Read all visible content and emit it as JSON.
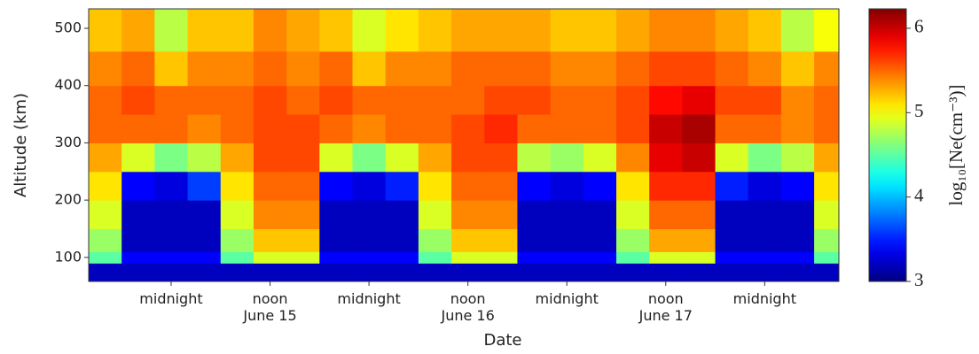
{
  "chart_data": {
    "type": "heatmap",
    "xlabel": "Date",
    "ylabel": "Altitude (km)",
    "colorbar_label": "log₁₀[Ne(cm⁻³)]",
    "colormap": "jet",
    "xlim": [
      -10,
      81
    ],
    "ylim": [
      58,
      534
    ],
    "clim": [
      3,
      6.23
    ],
    "xticks": [
      {
        "value": 0,
        "label": "midnight"
      },
      {
        "value": 12,
        "label": "noon\nJune 15"
      },
      {
        "value": 24,
        "label": "midnight"
      },
      {
        "value": 36,
        "label": "noon\nJune 16"
      },
      {
        "value": 48,
        "label": "midnight"
      },
      {
        "value": 60,
        "label": "noon\nJune 17"
      },
      {
        "value": 72,
        "label": "midnight"
      }
    ],
    "yticks": [
      100,
      200,
      300,
      400,
      500
    ],
    "cticks": [
      3,
      4,
      5,
      6
    ],
    "x_bins": [
      -10,
      -6,
      -2,
      2,
      6,
      10,
      14,
      18,
      22,
      26,
      30,
      34,
      38,
      42,
      46,
      50,
      54,
      58,
      62,
      66,
      70,
      74,
      78,
      81
    ],
    "y_bins": [
      58,
      90,
      110,
      150,
      200,
      250,
      300,
      350,
      400,
      460,
      534
    ],
    "values": [
      [
        3.2,
        3.2,
        3.2,
        3.2,
        3.2,
        3.2,
        3.2,
        3.2,
        3.2,
        3.2,
        3.2,
        3.2,
        3.2,
        3.2,
        3.2,
        3.2,
        3.2,
        3.2,
        3.2,
        3.2,
        3.2,
        3.2,
        3.2
      ],
      [
        4.5,
        3.4,
        3.4,
        3.4,
        4.5,
        4.9,
        4.9,
        3.4,
        3.4,
        3.4,
        4.5,
        4.9,
        4.9,
        3.4,
        3.4,
        3.4,
        4.5,
        4.9,
        4.9,
        3.4,
        3.4,
        3.4,
        4.5
      ],
      [
        4.7,
        3.2,
        3.2,
        3.2,
        4.7,
        5.2,
        5.2,
        3.2,
        3.2,
        3.2,
        4.7,
        5.2,
        5.2,
        3.2,
        3.2,
        3.2,
        4.7,
        5.3,
        5.3,
        3.2,
        3.2,
        3.2,
        4.7
      ],
      [
        4.9,
        3.2,
        3.2,
        3.2,
        4.9,
        5.4,
        5.4,
        3.2,
        3.2,
        3.2,
        4.9,
        5.4,
        5.4,
        3.2,
        3.2,
        3.2,
        4.9,
        5.5,
        5.5,
        3.2,
        3.2,
        3.2,
        4.9
      ],
      [
        5.1,
        3.4,
        3.3,
        3.6,
        5.1,
        5.5,
        5.5,
        3.4,
        3.3,
        3.5,
        5.1,
        5.5,
        5.5,
        3.4,
        3.3,
        3.4,
        5.1,
        5.7,
        5.7,
        3.5,
        3.3,
        3.4,
        5.1
      ],
      [
        5.3,
        4.9,
        4.6,
        4.8,
        5.3,
        5.6,
        5.6,
        4.9,
        4.6,
        4.9,
        5.3,
        5.6,
        5.6,
        4.8,
        4.7,
        4.9,
        5.4,
        5.9,
        6.0,
        4.9,
        4.6,
        4.8,
        5.3
      ],
      [
        5.5,
        5.5,
        5.5,
        5.4,
        5.5,
        5.6,
        5.6,
        5.5,
        5.4,
        5.5,
        5.5,
        5.6,
        5.7,
        5.5,
        5.5,
        5.5,
        5.6,
        6.0,
        6.1,
        5.5,
        5.5,
        5.4,
        5.5
      ],
      [
        5.5,
        5.6,
        5.5,
        5.5,
        5.5,
        5.6,
        5.5,
        5.6,
        5.5,
        5.5,
        5.5,
        5.5,
        5.6,
        5.6,
        5.5,
        5.5,
        5.6,
        5.8,
        5.9,
        5.6,
        5.6,
        5.4,
        5.5
      ],
      [
        5.4,
        5.5,
        5.2,
        5.4,
        5.4,
        5.5,
        5.4,
        5.5,
        5.2,
        5.4,
        5.4,
        5.5,
        5.5,
        5.5,
        5.4,
        5.4,
        5.5,
        5.6,
        5.6,
        5.5,
        5.4,
        5.2,
        5.4
      ],
      [
        5.2,
        5.3,
        4.8,
        5.2,
        5.2,
        5.4,
        5.3,
        5.2,
        4.9,
        5.1,
        5.2,
        5.3,
        5.3,
        5.3,
        5.2,
        5.2,
        5.3,
        5.4,
        5.4,
        5.3,
        5.2,
        4.8,
        5.0
      ]
    ]
  }
}
